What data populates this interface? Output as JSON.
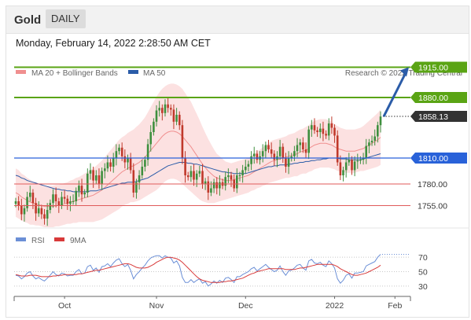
{
  "header": {
    "title": "Gold",
    "timeframe": "DAILY"
  },
  "timestamp": "Monday, February 14, 2022 2:28:50 AM CET",
  "credit": "Research © 2022 Trading Central",
  "colors": {
    "green": "#5aa414",
    "blue": "#2962d9",
    "red": "#e05a5a",
    "band": "#fbd7d7",
    "current": "#333333",
    "up": "#3e8f3e",
    "down": "#c0392b",
    "arrow": "#2b5ca8",
    "rsi": "#6b8fd6",
    "ma9": "#d83a3a"
  },
  "chart_data": [
    {
      "type": "candlestick",
      "legend": [
        {
          "label": "MA 20 + Bollinger Bands",
          "color": "#f08f8f"
        },
        {
          "label": "MA 50",
          "color": "#2b5ca8"
        }
      ],
      "x_labels": [
        "Oct",
        "Nov",
        "Dec",
        "2022",
        "Feb"
      ],
      "ylim": [
        1720,
        1920
      ],
      "levels": [
        {
          "value": 1915.0,
          "label": "1915.00",
          "kind": "resistance"
        },
        {
          "value": 1880.0,
          "label": "1880.00",
          "kind": "resistance"
        },
        {
          "value": 1858.13,
          "label": "1858.13",
          "kind": "current"
        },
        {
          "value": 1810.0,
          "label": "1810.00",
          "kind": "pivot"
        },
        {
          "value": 1780.0,
          "label": "1780.00",
          "kind": "support"
        },
        {
          "value": 1755.0,
          "label": "1755.00",
          "kind": "support"
        }
      ],
      "close": [
        1760,
        1755,
        1745,
        1752,
        1765,
        1770,
        1758,
        1746,
        1752,
        1745,
        1740,
        1750,
        1758,
        1768,
        1760,
        1755,
        1765,
        1763,
        1757,
        1760,
        1760,
        1772,
        1778,
        1768,
        1770,
        1792,
        1796,
        1784,
        1790,
        1780,
        1795,
        1798,
        1805,
        1800,
        1810,
        1818,
        1822,
        1812,
        1805,
        1810,
        1796,
        1770,
        1782,
        1790,
        1800,
        1808,
        1826,
        1840,
        1852,
        1865,
        1868,
        1862,
        1872,
        1868,
        1866,
        1852,
        1860,
        1848,
        1810,
        1790,
        1788,
        1795,
        1785,
        1792,
        1795,
        1780,
        1783,
        1770,
        1775,
        1782,
        1775,
        1782,
        1778,
        1788,
        1790,
        1785,
        1775,
        1790,
        1790,
        1796,
        1800,
        1803,
        1812,
        1815,
        1808,
        1812,
        1818,
        1825,
        1820,
        1815,
        1808,
        1812,
        1823,
        1810,
        1800,
        1810,
        1812,
        1818,
        1825,
        1828,
        1820,
        1816,
        1843,
        1848,
        1842,
        1840,
        1844,
        1838,
        1836,
        1850,
        1845,
        1836,
        1805,
        1790,
        1796,
        1805,
        1808,
        1796,
        1806,
        1807,
        1808,
        1810,
        1824,
        1828,
        1830,
        1835,
        1848,
        1858
      ],
      "ma50": [
        1790,
        1789,
        1787,
        1786,
        1784,
        1783,
        1782,
        1781,
        1780,
        1779,
        1778,
        1777,
        1776,
        1775,
        1774,
        1774,
        1773,
        1773,
        1772,
        1772,
        1771,
        1771,
        1771,
        1771,
        1771,
        1771,
        1772,
        1772,
        1772,
        1773,
        1774,
        1775,
        1776,
        1777,
        1778,
        1779,
        1780,
        1781,
        1781,
        1782,
        1782,
        1782,
        1783,
        1784,
        1785,
        1786,
        1787,
        1789,
        1791,
        1793,
        1795,
        1797,
        1799,
        1801,
        1802,
        1803,
        1804,
        1805,
        1805,
        1805,
        1804,
        1804,
        1803,
        1803,
        1802,
        1801,
        1800,
        1799,
        1798,
        1797,
        1796,
        1795,
        1794,
        1794,
        1793,
        1793,
        1792,
        1792,
        1792,
        1792,
        1792,
        1793,
        1794,
        1795,
        1796,
        1797,
        1798,
        1799,
        1800,
        1800,
        1801,
        1801,
        1802,
        1802,
        1802,
        1803,
        1803,
        1804,
        1804,
        1805,
        1805,
        1806,
        1806,
        1807,
        1807,
        1808,
        1808,
        1809,
        1809,
        1810,
        1810,
        1810,
        1810,
        1809,
        1809,
        1809,
        1808,
        1808,
        1808,
        1808,
        1808,
        1809,
        1810,
        1811,
        1812,
        1813,
        1814,
        1815
      ],
      "ma20": [
        1770,
        1768,
        1765,
        1763,
        1761,
        1759,
        1758,
        1757,
        1756,
        1755,
        1754,
        1754,
        1754,
        1754,
        1755,
        1755,
        1756,
        1757,
        1758,
        1759,
        1760,
        1761,
        1762,
        1763,
        1764,
        1765,
        1766,
        1767,
        1769,
        1771,
        1773,
        1776,
        1779,
        1782,
        1785,
        1788,
        1791,
        1794,
        1796,
        1798,
        1800,
        1801,
        1803,
        1805,
        1808,
        1811,
        1815,
        1819,
        1823,
        1827,
        1831,
        1835,
        1838,
        1840,
        1841,
        1841,
        1840,
        1838,
        1835,
        1831,
        1827,
        1823,
        1818,
        1813,
        1808,
        1803,
        1799,
        1795,
        1792,
        1789,
        1787,
        1786,
        1785,
        1784,
        1784,
        1784,
        1785,
        1786,
        1787,
        1788,
        1789,
        1790,
        1792,
        1794,
        1796,
        1798,
        1800,
        1802,
        1804,
        1806,
        1807,
        1808,
        1809,
        1810,
        1811,
        1812,
        1813,
        1814,
        1815,
        1817,
        1818,
        1819,
        1821,
        1823,
        1825,
        1826,
        1827,
        1827,
        1827,
        1826,
        1825,
        1823,
        1821,
        1820,
        1819,
        1818,
        1818,
        1818,
        1818,
        1819,
        1820,
        1821,
        1823,
        1825,
        1827,
        1829,
        1831,
        1834
      ],
      "band_width": [
        28,
        28,
        27,
        27,
        26,
        26,
        25,
        25,
        24,
        24,
        24,
        24,
        24,
        24,
        24,
        24,
        24,
        24,
        24,
        25,
        25,
        26,
        26,
        27,
        28,
        29,
        30,
        31,
        32,
        33,
        34,
        35,
        36,
        37,
        38,
        39,
        40,
        40,
        40,
        41,
        41,
        42,
        43,
        44,
        45,
        46,
        48,
        50,
        52,
        54,
        55,
        55,
        55,
        55,
        55,
        55,
        55,
        55,
        55,
        54,
        53,
        52,
        50,
        48,
        46,
        43,
        40,
        37,
        34,
        31,
        28,
        26,
        24,
        22,
        21,
        20,
        20,
        20,
        20,
        20,
        20,
        20,
        20,
        21,
        21,
        22,
        22,
        23,
        23,
        24,
        24,
        24,
        24,
        24,
        24,
        25,
        25,
        25,
        26,
        26,
        26,
        27,
        27,
        28,
        28,
        28,
        28,
        28,
        28,
        27,
        27,
        26,
        26,
        25,
        25,
        25,
        25,
        25,
        25,
        25,
        25,
        26,
        27,
        28,
        29,
        30,
        31,
        32
      ]
    },
    {
      "type": "line",
      "legend": [
        {
          "label": "RSI",
          "color": "#6b8fd6"
        },
        {
          "label": "9MA",
          "color": "#d83a3a"
        }
      ],
      "y_ticks": [
        "70",
        "50",
        "30"
      ],
      "ylim": [
        20,
        80
      ],
      "rsi": [
        45,
        44,
        40,
        43,
        48,
        50,
        44,
        40,
        42,
        39,
        37,
        41,
        45,
        50,
        46,
        44,
        48,
        47,
        44,
        45,
        45,
        50,
        53,
        47,
        48,
        57,
        59,
        52,
        55,
        49,
        57,
        58,
        61,
        57,
        62,
        66,
        68,
        61,
        57,
        60,
        52,
        40,
        46,
        50,
        55,
        59,
        65,
        69,
        71,
        72,
        72,
        69,
        72,
        70,
        69,
        62,
        65,
        58,
        42,
        35,
        35,
        39,
        35,
        38,
        40,
        34,
        36,
        30,
        33,
        37,
        34,
        38,
        35,
        41,
        42,
        39,
        35,
        43,
        43,
        46,
        48,
        50,
        54,
        56,
        51,
        54,
        57,
        60,
        56,
        53,
        50,
        52,
        58,
        50,
        45,
        51,
        52,
        55,
        59,
        60,
        55,
        52,
        65,
        67,
        62,
        61,
        63,
        59,
        57,
        65,
        61,
        55,
        40,
        34,
        38,
        45,
        47,
        41,
        48,
        48,
        49,
        50,
        58,
        60,
        62,
        64,
        70,
        74
      ],
      "ma9": [
        46,
        45,
        44,
        44,
        44,
        45,
        45,
        45,
        44,
        43,
        43,
        43,
        43,
        44,
        44,
        45,
        45,
        46,
        46,
        46,
        46,
        46,
        47,
        47,
        48,
        49,
        50,
        51,
        52,
        52,
        53,
        54,
        55,
        56,
        57,
        58,
        59,
        60,
        61,
        61,
        60,
        58,
        56,
        55,
        55,
        55,
        56,
        58,
        60,
        63,
        65,
        67,
        69,
        70,
        70,
        69,
        68,
        66,
        63,
        59,
        55,
        51,
        47,
        43,
        40,
        38,
        37,
        36,
        35,
        35,
        35,
        35,
        36,
        36,
        37,
        37,
        38,
        39,
        40,
        41,
        43,
        45,
        47,
        48,
        50,
        51,
        52,
        53,
        54,
        54,
        54,
        54,
        54,
        54,
        53,
        53,
        53,
        53,
        54,
        55,
        55,
        56,
        57,
        58,
        59,
        60,
        60,
        60,
        60,
        60,
        60,
        59,
        57,
        54,
        52,
        50,
        48,
        46,
        45,
        45,
        46,
        47,
        48,
        50,
        52,
        54,
        56,
        59
      ]
    }
  ]
}
